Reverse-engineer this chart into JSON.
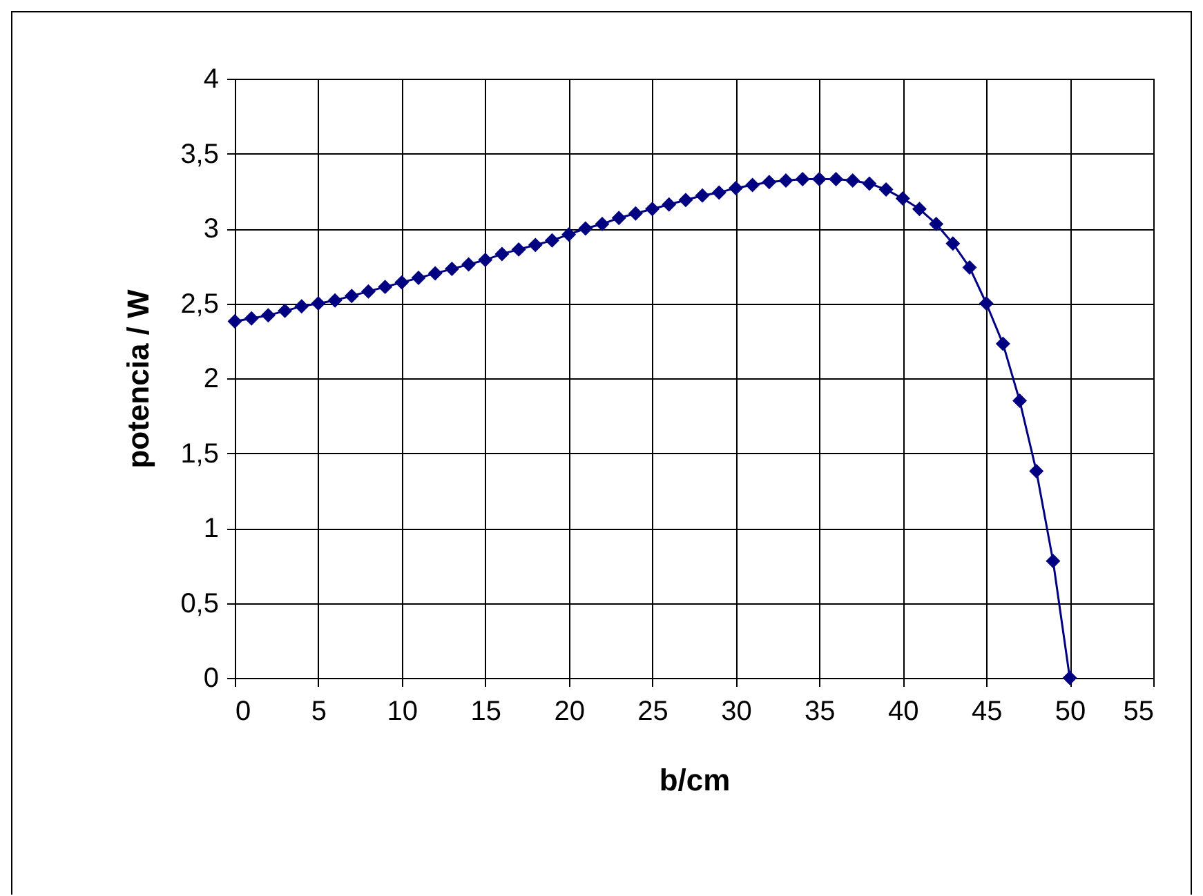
{
  "chart_data": {
    "type": "line",
    "xlabel": "b/cm",
    "ylabel": "potencia / W",
    "x": [
      0,
      1,
      2,
      3,
      4,
      5,
      6,
      7,
      8,
      9,
      10,
      11,
      12,
      13,
      14,
      15,
      16,
      17,
      18,
      19,
      20,
      21,
      22,
      23,
      24,
      25,
      26,
      27,
      28,
      29,
      30,
      31,
      32,
      33,
      34,
      35,
      36,
      37,
      38,
      39,
      40,
      41,
      42,
      43,
      44,
      45,
      46,
      47,
      48,
      49,
      50
    ],
    "series": [
      {
        "color": "#000080",
        "values": [
          2.38,
          2.4,
          2.42,
          2.45,
          2.48,
          2.5,
          2.52,
          2.55,
          2.58,
          2.61,
          2.64,
          2.67,
          2.7,
          2.73,
          2.76,
          2.79,
          2.83,
          2.86,
          2.89,
          2.92,
          2.96,
          3.0,
          3.03,
          3.07,
          3.1,
          3.13,
          3.16,
          3.19,
          3.22,
          3.24,
          3.27,
          3.29,
          3.31,
          3.32,
          3.33,
          3.33,
          3.33,
          3.32,
          3.3,
          3.26,
          3.2,
          3.13,
          3.03,
          2.9,
          2.74,
          2.5,
          2.23,
          1.85,
          1.38,
          0.78,
          0
        ]
      }
    ],
    "xlim": [
      0,
      55
    ],
    "xticks": [
      0,
      5,
      10,
      15,
      20,
      25,
      30,
      35,
      40,
      45,
      50,
      55
    ],
    "ylim": [
      0,
      4
    ],
    "yticks": [
      0,
      {
        "value": 0.5,
        "label": "0,5"
      },
      1,
      {
        "value": 1.5,
        "label": "1,5"
      },
      2,
      {
        "value": 2.5,
        "label": "2,5"
      },
      3,
      {
        "value": 3.5,
        "label": "3,5"
      },
      4
    ],
    "grid": true,
    "marker": "diamond",
    "line_style": "solid"
  }
}
